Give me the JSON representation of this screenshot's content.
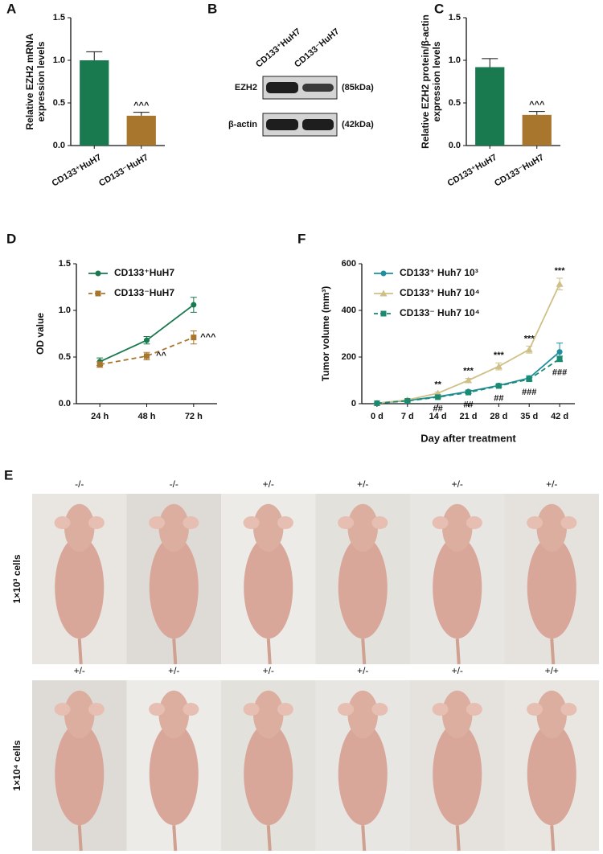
{
  "chart_data": [
    {
      "type": "bar",
      "panel": "A",
      "ylabel": "Relative EZH2 mRNA\nexpression levels",
      "categories": [
        "CD133⁺HuH7",
        "CD133⁻HuH7"
      ],
      "values": [
        1.0,
        0.35
      ],
      "errors": [
        0.1,
        0.04
      ],
      "markers": [
        null,
        "^^^"
      ],
      "colors": [
        "#1a7a4f",
        "#a8762d"
      ],
      "ylim": [
        0,
        1.5
      ],
      "yticks": [
        {
          "value": 0,
          "label": "0.0"
        },
        0.5,
        {
          "value": 1,
          "label": "1.0"
        },
        1.5
      ]
    },
    {
      "type": "bar",
      "panel": "C",
      "ylabel": "Relative EZH2 protein/β-actin\nexpression levels",
      "categories": [
        "CD133⁺HuH7",
        "CD133⁻HuH7"
      ],
      "values": [
        0.92,
        0.36
      ],
      "errors": [
        0.1,
        0.04
      ],
      "markers": [
        null,
        "^^^"
      ],
      "colors": [
        "#1a7a4f",
        "#a8762d"
      ],
      "ylim": [
        0,
        1.5
      ],
      "yticks": [
        {
          "value": 0,
          "label": "0.0"
        },
        0.5,
        {
          "value": 1,
          "label": "1.0"
        },
        1.5
      ]
    },
    {
      "type": "line",
      "panel": "D",
      "ylabel": "OD value",
      "legend": "upper left",
      "categories": [
        "24 h",
        "48 h",
        "72 h"
      ],
      "series": [
        {
          "name": "CD133⁺HuH7",
          "color": "#1a7a4f",
          "marker": "circle",
          "dashed": false,
          "values": [
            0.45,
            0.68,
            1.06
          ],
          "errors": [
            0.04,
            0.04,
            0.08
          ],
          "markers": [
            null,
            null,
            null
          ]
        },
        {
          "name": "CD133⁻HuH7",
          "color": "#a8762d",
          "marker": "square",
          "dashed": true,
          "values": [
            0.42,
            0.51,
            0.71
          ],
          "errors": [
            0.03,
            0.04,
            0.07
          ],
          "markers": [
            null,
            "^^",
            "^^^"
          ]
        }
      ],
      "ylim": [
        0,
        1.5
      ],
      "yticks": [
        {
          "value": 0,
          "label": "0.0"
        },
        0.5,
        {
          "value": 1,
          "label": "1.0"
        },
        1.5
      ]
    },
    {
      "type": "line",
      "panel": "F",
      "ylabel": "Tumor volume (mm³)",
      "xlabel": "Day after treatment",
      "legend": "upper left",
      "categories": [
        "0 d",
        "7 d",
        "14 d",
        "21 d",
        "28 d",
        "35 d",
        "42 d"
      ],
      "series": [
        {
          "name": "CD133⁺ Huh7 10³",
          "color": "#1f8fa0",
          "marker": "circle",
          "dashed": false,
          "values": [
            2,
            14,
            30,
            52,
            78,
            110,
            222
          ],
          "errors": [
            1,
            3,
            5,
            6,
            6,
            10,
            38
          ],
          "markers": [
            null,
            null,
            null,
            null,
            null,
            null,
            null
          ]
        },
        {
          "name": "CD133⁺ Huh7 10⁴",
          "color": "#cfc087",
          "marker": "triangle",
          "dashed": false,
          "values": [
            2,
            16,
            45,
            100,
            160,
            232,
            513
          ],
          "errors": [
            1,
            3,
            5,
            8,
            15,
            15,
            25
          ],
          "markers": [
            null,
            null,
            "**",
            "***",
            "***",
            "***",
            "***"
          ]
        },
        {
          "name": "CD133⁻ Huh7 10⁴",
          "color": "#1a8a70",
          "marker": "square",
          "dashed": true,
          "values": [
            2,
            12,
            28,
            48,
            76,
            105,
            192
          ],
          "errors": [
            1,
            2,
            3,
            5,
            5,
            8,
            12
          ],
          "markers": [
            null,
            null,
            "##",
            "##",
            "##",
            "###",
            "###"
          ]
        }
      ],
      "ylim": [
        0,
        600
      ],
      "yticks": [
        0,
        200,
        400,
        600
      ]
    }
  ],
  "blot": {
    "panel": "B",
    "columns": [
      "CD133⁺HuH7",
      "CD133⁻HuH7"
    ],
    "rows": [
      "EZH2",
      "β-actin"
    ],
    "sizes": [
      "(85kDa)",
      "(42kDa)"
    ]
  },
  "photos": {
    "panel": "E",
    "rows": [
      {
        "label": "1×10³ cells",
        "mice": [
          "-/-",
          "-/-",
          "+/-",
          "+/-",
          "+/-",
          "+/-"
        ]
      },
      {
        "label": "1×10⁴ cells",
        "mice": [
          "+/-",
          "+/-",
          "+/-",
          "+/-",
          "+/-",
          "+/+"
        ]
      }
    ]
  }
}
